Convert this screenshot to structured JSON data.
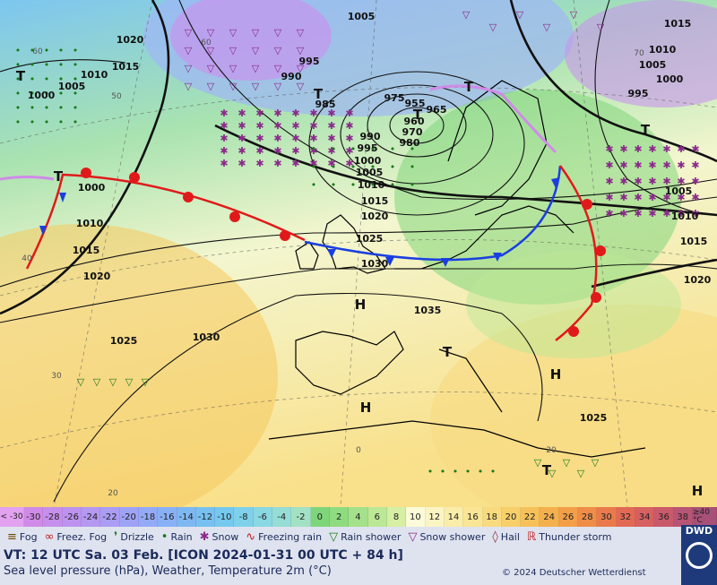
{
  "valid_time": "VT: 12 UTC Sa.  03 Feb. [ICON 2024-01-31  00 UTC + 84 h]",
  "subtitle": "Sea level pressure (hPa), Weather, Temperature 2m (°C)",
  "copyright": "© 2024 Deutscher Wetterdienst",
  "logo_text": "DWD",
  "temperature_scale": {
    "low_end": "< -30",
    "high_end": "≥40 °C",
    "steps": [
      {
        "label": "-30",
        "color": "#d08be8"
      },
      {
        "label": "-28",
        "color": "#c68fec"
      },
      {
        "label": "-26",
        "color": "#bd93ef"
      },
      {
        "label": "-24",
        "color": "#b498f1"
      },
      {
        "label": "-22",
        "color": "#aa9df3"
      },
      {
        "label": "-20",
        "color": "#9ea3f6"
      },
      {
        "label": "-18",
        "color": "#93aaf6"
      },
      {
        "label": "-16",
        "color": "#88b1f5"
      },
      {
        "label": "-14",
        "color": "#7eb8f2"
      },
      {
        "label": "-12",
        "color": "#78c0f0"
      },
      {
        "label": "-10",
        "color": "#76c9ee"
      },
      {
        "label": "-8",
        "color": "#7fd1ea"
      },
      {
        "label": "-6",
        "color": "#8ad8e2"
      },
      {
        "label": "-4",
        "color": "#96ddd6"
      },
      {
        "label": "-2",
        "color": "#a3e1c5"
      },
      {
        "label": "0",
        "color": "#7fd67a"
      },
      {
        "label": "2",
        "color": "#8fdb80"
      },
      {
        "label": "4",
        "color": "#a4e18a"
      },
      {
        "label": "6",
        "color": "#bce896"
      },
      {
        "label": "8",
        "color": "#d6efa4"
      },
      {
        "label": "10",
        "color": "#fbfbd9"
      },
      {
        "label": "12",
        "color": "#fbf4c3"
      },
      {
        "label": "14",
        "color": "#faedaa"
      },
      {
        "label": "16",
        "color": "#f9e594"
      },
      {
        "label": "18",
        "color": "#f8db7e"
      },
      {
        "label": "20",
        "color": "#f7cf6b"
      },
      {
        "label": "22",
        "color": "#f6c15a"
      },
      {
        "label": "24",
        "color": "#f4b04d"
      },
      {
        "label": "26",
        "color": "#f29f48"
      },
      {
        "label": "28",
        "color": "#ef8d48"
      },
      {
        "label": "30",
        "color": "#ea7a4c"
      },
      {
        "label": "32",
        "color": "#e26a55"
      },
      {
        "label": "34",
        "color": "#d76061"
      },
      {
        "label": "36",
        "color": "#c95a6c"
      },
      {
        "label": "38",
        "color": "#b85574"
      }
    ]
  },
  "legend": [
    {
      "symbol": "≡",
      "label": "Fog",
      "color": "#6b4a00"
    },
    {
      "symbol": "∞",
      "label": "Freez. Fog",
      "color": "#c02020"
    },
    {
      "symbol": "❜",
      "label": "Drizzle",
      "color": "#1a7a1a"
    },
    {
      "symbol": "•",
      "label": "Rain",
      "color": "#1a7a1a"
    },
    {
      "symbol": "✱",
      "label": "Snow",
      "color": "#8a2a8a"
    },
    {
      "symbol": "∿",
      "label": "Freezing rain",
      "color": "#c02020"
    },
    {
      "symbol": "▽",
      "label": "Rain shower",
      "color": "#1a7a1a"
    },
    {
      "symbol": "▽",
      "label": "Snow shower",
      "color": "#8a2a8a"
    },
    {
      "symbol": "◊",
      "label": "Hail",
      "color": "#8a2a3a"
    },
    {
      "symbol": "ℝ",
      "label": "Thunder storm",
      "color": "#c02020"
    }
  ],
  "isobar_labels": [
    "1005",
    "1020",
    "1015",
    "1000",
    "1010",
    "1005",
    "990",
    "995",
    "985",
    "975",
    "955",
    "960",
    "965",
    "970",
    "980",
    "990",
    "995",
    "1000",
    "1005",
    "1010",
    "1015",
    "1020",
    "1025",
    "1030",
    "1035",
    "1000",
    "1010",
    "1015",
    "1020",
    "1025",
    "1030",
    "1000",
    "1005",
    "1010",
    "1015",
    "1020",
    "995",
    "1005",
    "1010",
    "1015",
    "1025"
  ],
  "pressure_centers": [
    {
      "type": "H"
    },
    {
      "type": "H"
    },
    {
      "type": "H"
    },
    {
      "type": "H"
    },
    {
      "type": "T"
    },
    {
      "type": "T"
    },
    {
      "type": "T"
    },
    {
      "type": "T"
    },
    {
      "type": "T"
    },
    {
      "type": "T"
    },
    {
      "type": "T"
    },
    {
      "type": "T"
    }
  ],
  "temperature_labels": [
    "30",
    "20",
    "40",
    "50",
    "60",
    "60",
    "70",
    "0",
    "20"
  ],
  "colors": {
    "cold_front": "#1a3fe0",
    "warm_front": "#e01a1a",
    "isobar": "#111111",
    "coast": "#000000"
  }
}
